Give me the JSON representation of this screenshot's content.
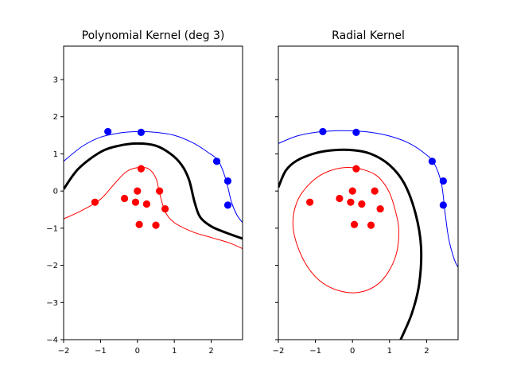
{
  "chart_data": [
    {
      "type": "scatter",
      "title": "Polynomial Kernel (deg 3)",
      "xlim": [
        -2,
        2.85
      ],
      "ylim": [
        -4,
        3.9
      ],
      "xticks": [
        -2,
        -1,
        0,
        1,
        2
      ],
      "yticks": [
        -4,
        -3,
        -2,
        -1,
        0,
        1,
        2,
        3
      ],
      "show_ytick_labels": true,
      "series": [
        {
          "color": "#0000ff",
          "points": [
            [
              -0.8,
              1.6
            ],
            [
              0.1,
              1.58
            ],
            [
              2.15,
              0.8
            ],
            [
              2.45,
              0.27
            ],
            [
              2.45,
              -0.38
            ]
          ]
        },
        {
          "color": "#ff0000",
          "points": [
            [
              -1.15,
              -0.3
            ],
            [
              0.1,
              0.6
            ],
            [
              -0.35,
              -0.2
            ],
            [
              0.0,
              0.0
            ],
            [
              -0.05,
              -0.3
            ],
            [
              0.25,
              -0.35
            ],
            [
              0.6,
              0.0
            ],
            [
              0.75,
              -0.48
            ],
            [
              0.05,
              -0.9
            ],
            [
              0.5,
              -0.92
            ]
          ]
        }
      ],
      "curves": [
        {
          "role": "decision-boundary",
          "color": "#000000",
          "width": 3,
          "points": [
            [
              -2.0,
              0.05
            ],
            [
              -1.6,
              0.6
            ],
            [
              -1.0,
              1.05
            ],
            [
              -0.5,
              1.22
            ],
            [
              0.0,
              1.28
            ],
            [
              0.5,
              1.22
            ],
            [
              0.9,
              1.0
            ],
            [
              1.2,
              0.7
            ],
            [
              1.4,
              0.3
            ],
            [
              1.55,
              -0.3
            ],
            [
              1.7,
              -0.7
            ],
            [
              2.0,
              -0.95
            ],
            [
              2.4,
              -1.12
            ],
            [
              2.85,
              -1.28
            ]
          ]
        },
        {
          "role": "margin",
          "color": "#0000ff",
          "width": 1,
          "points": [
            [
              -2.0,
              0.8
            ],
            [
              -1.5,
              1.2
            ],
            [
              -1.0,
              1.45
            ],
            [
              -0.5,
              1.56
            ],
            [
              0.0,
              1.6
            ],
            [
              0.5,
              1.58
            ],
            [
              1.0,
              1.5
            ],
            [
              1.5,
              1.3
            ],
            [
              1.9,
              1.05
            ],
            [
              2.2,
              0.8
            ],
            [
              2.4,
              0.3
            ],
            [
              2.55,
              -0.3
            ],
            [
              2.7,
              -0.65
            ],
            [
              2.85,
              -0.85
            ]
          ]
        },
        {
          "role": "margin",
          "color": "#ff0000",
          "width": 1,
          "points": [
            [
              -2.0,
              -0.75
            ],
            [
              -1.5,
              -0.52
            ],
            [
              -1.0,
              -0.22
            ],
            [
              -0.6,
              0.22
            ],
            [
              -0.3,
              0.52
            ],
            [
              0.0,
              0.63
            ],
            [
              0.3,
              0.6
            ],
            [
              0.5,
              0.35
            ],
            [
              0.6,
              -0.05
            ],
            [
              0.75,
              -0.55
            ],
            [
              1.0,
              -0.85
            ],
            [
              1.5,
              -1.1
            ],
            [
              2.0,
              -1.25
            ],
            [
              2.5,
              -1.4
            ],
            [
              2.85,
              -1.55
            ]
          ]
        }
      ]
    },
    {
      "type": "scatter",
      "title": "Radial Kernel",
      "xlim": [
        -2,
        2.85
      ],
      "ylim": [
        -4,
        3.9
      ],
      "xticks": [
        -2,
        -1,
        0,
        1,
        2
      ],
      "yticks": [
        -4,
        -3,
        -2,
        -1,
        0,
        1,
        2,
        3
      ],
      "show_ytick_labels": false,
      "series": [
        {
          "color": "#0000ff",
          "points": [
            [
              -0.8,
              1.6
            ],
            [
              0.1,
              1.58
            ],
            [
              2.15,
              0.8
            ],
            [
              2.45,
              0.27
            ],
            [
              2.45,
              -0.38
            ]
          ]
        },
        {
          "color": "#ff0000",
          "points": [
            [
              -1.15,
              -0.3
            ],
            [
              0.1,
              0.6
            ],
            [
              -0.35,
              -0.2
            ],
            [
              0.0,
              0.0
            ],
            [
              -0.05,
              -0.3
            ],
            [
              0.25,
              -0.35
            ],
            [
              0.6,
              0.0
            ],
            [
              0.75,
              -0.48
            ],
            [
              0.05,
              -0.9
            ],
            [
              0.5,
              -0.92
            ]
          ]
        }
      ],
      "curves": [
        {
          "role": "decision-boundary",
          "color": "#000000",
          "width": 3,
          "points": [
            [
              -2.0,
              0.1
            ],
            [
              -1.8,
              0.55
            ],
            [
              -1.5,
              0.82
            ],
            [
              -1.0,
              1.02
            ],
            [
              -0.5,
              1.1
            ],
            [
              0.0,
              1.1
            ],
            [
              0.5,
              1.0
            ],
            [
              1.0,
              0.7
            ],
            [
              1.4,
              0.2
            ],
            [
              1.7,
              -0.6
            ],
            [
              1.85,
              -1.5
            ],
            [
              1.8,
              -2.5
            ],
            [
              1.6,
              -3.3
            ],
            [
              1.3,
              -4.0
            ]
          ]
        },
        {
          "role": "margin",
          "color": "#0000ff",
          "width": 1,
          "points": [
            [
              -2.0,
              1.28
            ],
            [
              -1.5,
              1.48
            ],
            [
              -1.0,
              1.58
            ],
            [
              -0.5,
              1.62
            ],
            [
              0.0,
              1.62
            ],
            [
              0.5,
              1.58
            ],
            [
              1.0,
              1.48
            ],
            [
              1.5,
              1.3
            ],
            [
              1.9,
              1.05
            ],
            [
              2.2,
              0.75
            ],
            [
              2.4,
              0.2
            ],
            [
              2.5,
              -0.6
            ],
            [
              2.6,
              -1.3
            ],
            [
              2.75,
              -1.85
            ],
            [
              2.85,
              -2.05
            ]
          ]
        },
        {
          "role": "margin",
          "color": "#ff0000",
          "width": 1,
          "closed": true,
          "points": [
            [
              0.0,
              0.63
            ],
            [
              0.6,
              0.45
            ],
            [
              0.95,
              0.05
            ],
            [
              1.15,
              -0.5
            ],
            [
              1.25,
              -1.1
            ],
            [
              1.15,
              -1.8
            ],
            [
              0.8,
              -2.4
            ],
            [
              0.3,
              -2.7
            ],
            [
              -0.3,
              -2.7
            ],
            [
              -0.9,
              -2.4
            ],
            [
              -1.35,
              -1.8
            ],
            [
              -1.6,
              -1.0
            ],
            [
              -1.5,
              -0.3
            ],
            [
              -1.1,
              0.25
            ],
            [
              -0.6,
              0.55
            ]
          ]
        }
      ]
    }
  ]
}
